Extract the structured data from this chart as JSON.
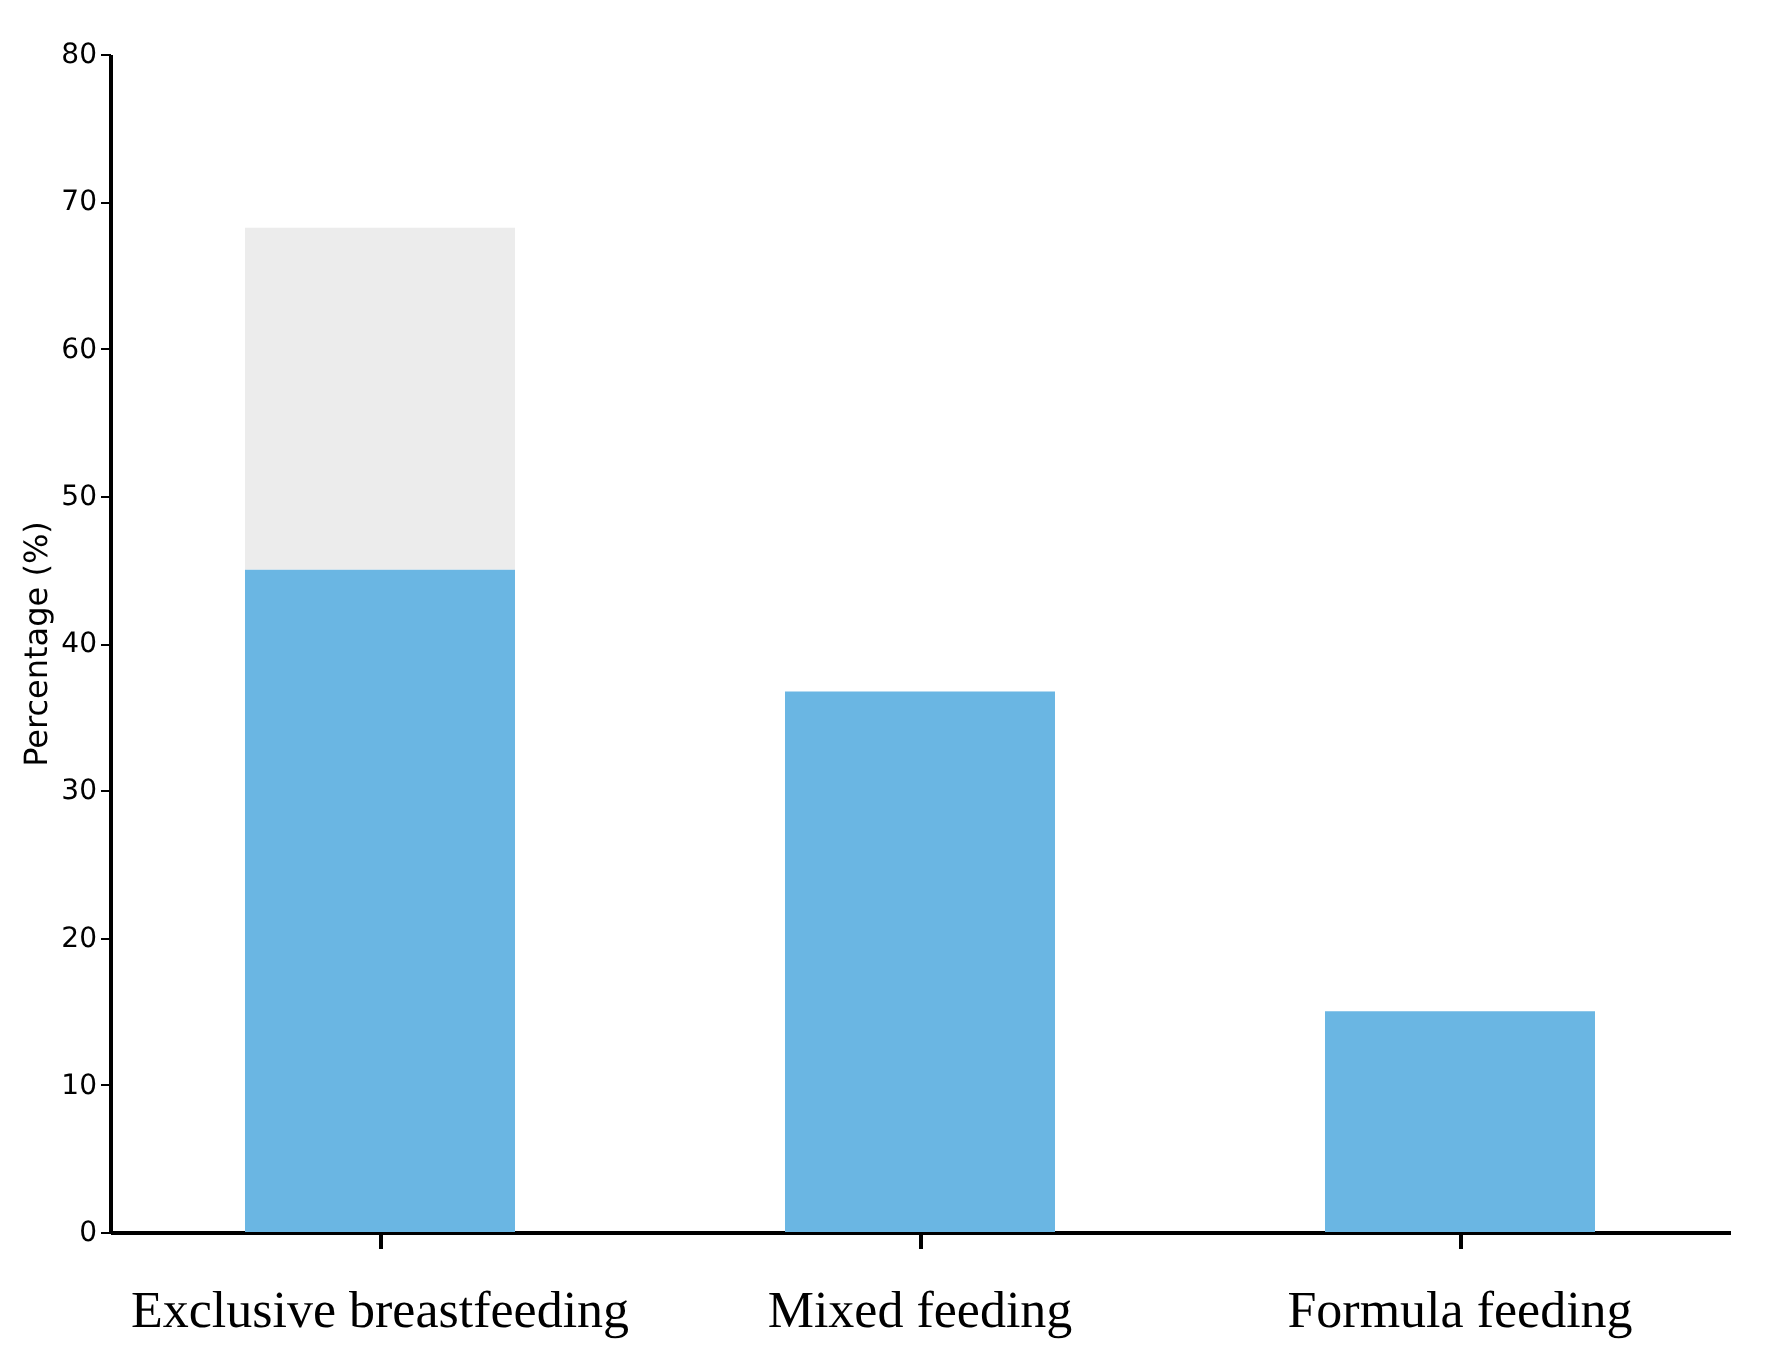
{
  "chart_data": {
    "type": "bar",
    "ylabel": "Percentage (%)",
    "categories": [
      "Exclusive breastfeeding",
      "Mixed feeding",
      "Formula feeding"
    ],
    "stacked": true,
    "series": [
      {
        "color": "#6ab6e3",
        "values": [
          45,
          36.7,
          15
        ]
      },
      {
        "color": "#ececec",
        "values": [
          23.2,
          null,
          null
        ]
      }
    ],
    "ylim": [
      0,
      80
    ],
    "yticks": [
      0,
      10,
      20,
      30,
      40,
      50,
      60,
      70,
      80
    ],
    "grid": false,
    "legend": false
  }
}
